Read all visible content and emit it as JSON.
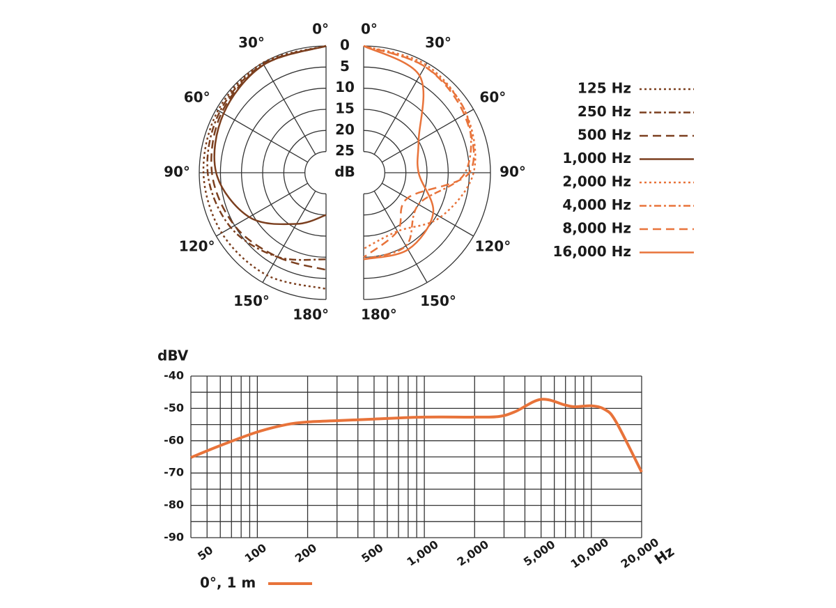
{
  "chart_data": [
    {
      "type": "polar",
      "theta": [
        0,
        30,
        60,
        90,
        120,
        150,
        180
      ],
      "rlim": [
        30,
        0
      ],
      "rticks": [
        0,
        5,
        10,
        15,
        20,
        25
      ],
      "r_label": "dB",
      "theta_ticks": [
        {
          "value": 0,
          "label": "0°"
        },
        {
          "value": 30,
          "label": "30°"
        },
        {
          "value": 60,
          "label": "60°"
        },
        {
          "value": 90,
          "label": "90°"
        },
        {
          "value": 120,
          "label": "120°"
        },
        {
          "value": 150,
          "label": "150°"
        },
        {
          "value": 180,
          "label": "180°"
        }
      ],
      "series": [
        {
          "name": "125 Hz",
          "color": "#7b3f1f",
          "dash": "dotted",
          "side": "left",
          "values": [
            0,
            0,
            0.5,
            1,
            1.5,
            2,
            2.5
          ]
        },
        {
          "name": "250 Hz",
          "color": "#7b3f1f",
          "dash": "dashdot",
          "side": "left",
          "values": [
            0,
            0.3,
            1,
            2,
            4,
            7,
            9.5
          ]
        },
        {
          "name": "500 Hz",
          "color": "#7b3f1f",
          "dash": "dashed",
          "side": "left",
          "values": [
            0,
            0.5,
            1.5,
            3,
            5,
            7,
            7
          ]
        },
        {
          "name": "1,000 Hz",
          "color": "#7b3f1f",
          "dash": "solid",
          "side": "left",
          "values": [
            0,
            0.5,
            2,
            4,
            9,
            16,
            20
          ]
        },
        {
          "name": "2,000 Hz",
          "color": "#e8733a",
          "dash": "dotted",
          "side": "right",
          "values": [
            0,
            0.5,
            2,
            4,
            9,
            14,
            12
          ]
        },
        {
          "name": "4,000 Hz",
          "color": "#e8733a",
          "dash": "dashdot",
          "side": "right",
          "values": [
            0,
            1,
            2,
            6,
            15,
            10,
            9.5
          ]
        },
        {
          "name": "8,000 Hz",
          "color": "#e8733a",
          "dash": "dashed",
          "side": "right",
          "values": [
            0,
            1,
            2.5,
            5,
            18,
            14,
            10
          ]
        },
        {
          "name": "16,000 Hz",
          "color": "#e8733a",
          "dash": "solid",
          "side": "right",
          "values": [
            0,
            3.5,
            15,
            17,
            11,
            9,
            9.5
          ]
        }
      ]
    },
    {
      "type": "line",
      "x_label": "Hz",
      "y_label": "dBV",
      "xscale": "log",
      "xlim": [
        40,
        20000
      ],
      "xticks": [
        50,
        100,
        200,
        500,
        {
          "value": 1000,
          "label": "1,000"
        },
        {
          "value": 2000,
          "label": "2,000"
        },
        {
          "value": 5000,
          "label": "5,000"
        },
        {
          "value": 10000,
          "label": "10,000"
        },
        {
          "value": 20000,
          "label": "20,000"
        }
      ],
      "xminor": [
        40,
        60,
        70,
        80,
        90,
        300,
        400,
        600,
        700,
        800,
        900,
        3000,
        4000,
        6000,
        7000,
        8000,
        9000
      ],
      "ylim": [
        -90,
        -40
      ],
      "yticks": [
        -40,
        -50,
        -60,
        -70,
        -80,
        -90
      ],
      "yminor": [
        -45,
        -55,
        -65,
        -75,
        -85
      ],
      "grid": true,
      "x": [
        40,
        60,
        100,
        150,
        200,
        300,
        500,
        1000,
        2000,
        2800,
        3500,
        5000,
        7000,
        8000,
        10000,
        12000,
        14000,
        20000
      ],
      "series": [
        {
          "name": "0°, 1 m",
          "color": "#e8733a",
          "values": [
            -65.2,
            -61.5,
            -57.3,
            -55,
            -54.2,
            -53.8,
            -53.3,
            -52.7,
            -52.7,
            -52.5,
            -51,
            -47.2,
            -49,
            -49.5,
            -49.2,
            -50.3,
            -54,
            -69.7
          ]
        }
      ]
    }
  ]
}
